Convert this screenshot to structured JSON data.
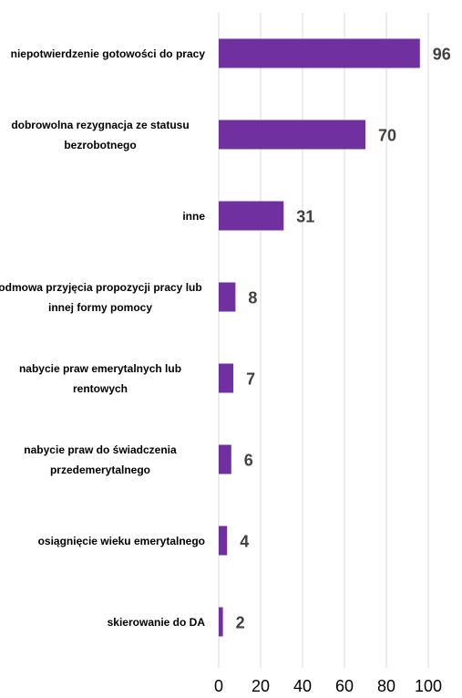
{
  "chart_data": {
    "type": "bar",
    "orientation": "horizontal",
    "categories": [
      "niepotwierdzenie gotowości do pracy",
      "dobrowolna rezygnacja ze statusu bezrobotnego",
      "inne",
      "odmowa przyjęcia propozycji pracy lub innej formy pomocy",
      "nabycie praw emerytalnych lub rentowych",
      "nabycie praw do świadczenia przedemerytalnego",
      "osiągnięcie wieku emerytalnego",
      "skierowanie do DA"
    ],
    "values": [
      96,
      70,
      31,
      8,
      7,
      6,
      4,
      2
    ],
    "color": "#7030a0",
    "xlim": [
      0,
      100
    ],
    "xticks": [
      0,
      20,
      40,
      60,
      80,
      100
    ],
    "grid": true
  }
}
